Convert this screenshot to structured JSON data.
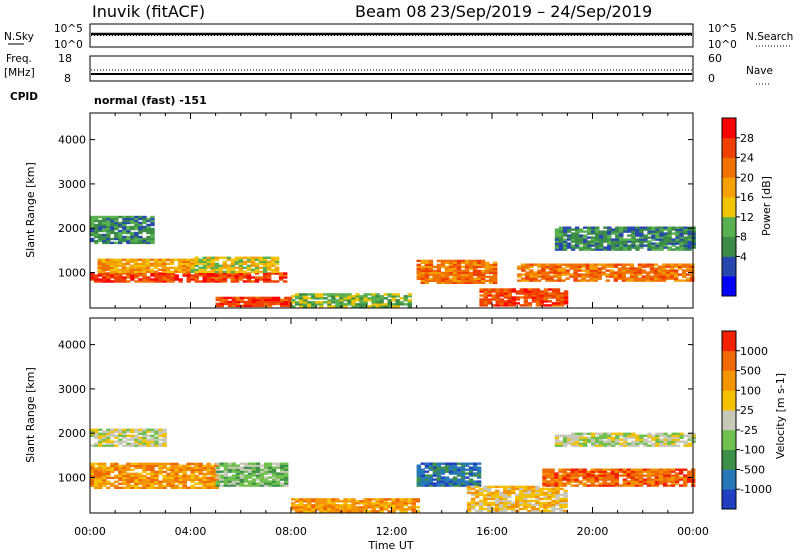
{
  "header": {
    "station": "Inuvik (fitACF)",
    "beam": "Beam 08",
    "date_range": "23/Sep/2019 – 24/Sep/2019"
  },
  "status_panel": {
    "nsky_label": "N.Sky",
    "nsky_ticks": [
      "10^5",
      "10^0"
    ],
    "nsearch_label": "N.Search",
    "nsearch_ticks": [
      "10^5",
      "10^0"
    ]
  },
  "freq_panel": {
    "freq_label": "Freq.",
    "freq_unit": "[MHz]",
    "freq_ticks": [
      "18",
      "8"
    ],
    "nave_label": "Nave",
    "nave_ticks": [
      "60",
      "0"
    ],
    "cpid_label": "CPID",
    "cpid_text": "normal (fast) -151"
  },
  "x_axis": {
    "label": "Time UT",
    "ticks": [
      "00:00",
      "04:00",
      "08:00",
      "12:00",
      "16:00",
      "20:00",
      "00:00"
    ]
  },
  "power_colorbar": {
    "label": "Power [dB]",
    "ticks": [
      "28",
      "24",
      "20",
      "16",
      "12",
      "8",
      "4"
    ],
    "colors": [
      "#0000ff",
      "#2848b0",
      "#3c8c48",
      "#58b050",
      "#f0c400",
      "#f4a000",
      "#f07000",
      "#f04000",
      "#ff0000"
    ]
  },
  "velocity_colorbar": {
    "label": "Velocity [m s-1]",
    "ticks": [
      "1000",
      "500",
      "100",
      "25",
      "-25",
      "-100",
      "-500",
      "-1000"
    ],
    "colors": [
      "#2040c0",
      "#2878b8",
      "#3c9048",
      "#70c050",
      "#c8c8b8",
      "#f4c000",
      "#f49400",
      "#f06800",
      "#f02000"
    ]
  },
  "chart_data": [
    {
      "type": "heatmap",
      "name": "power",
      "ylabel": "Slant Range [km]",
      "yticks": [
        "1000",
        "2000",
        "3000",
        "4000"
      ],
      "ylim": [
        200,
        4600
      ],
      "xlim": [
        0,
        24
      ],
      "echo_regions": [
        {
          "t0": 0.0,
          "t1": 7.8,
          "r0": 780,
          "r1": 1000,
          "level": 7
        },
        {
          "t0": 0.3,
          "t1": 4.0,
          "r0": 1000,
          "r1": 1300,
          "level": 5
        },
        {
          "t0": 4.0,
          "t1": 7.5,
          "r0": 1000,
          "r1": 1320,
          "level": 4
        },
        {
          "t0": 0.0,
          "t1": 2.5,
          "r0": 1650,
          "r1": 2250,
          "level": 2
        },
        {
          "t0": 5.0,
          "t1": 8.0,
          "r0": 230,
          "r1": 420,
          "level": 7
        },
        {
          "t0": 8.0,
          "t1": 12.8,
          "r0": 220,
          "r1": 500,
          "level": 3
        },
        {
          "t0": 13.0,
          "t1": 16.2,
          "r0": 750,
          "r1": 1250,
          "level": 6
        },
        {
          "t0": 15.5,
          "t1": 19.0,
          "r0": 240,
          "r1": 620,
          "level": 7
        },
        {
          "t0": 17.0,
          "t1": 24.0,
          "r0": 800,
          "r1": 1200,
          "level": 6
        },
        {
          "t0": 18.5,
          "t1": 24.0,
          "r0": 1500,
          "r1": 2000,
          "level": 2
        }
      ]
    },
    {
      "type": "heatmap",
      "name": "velocity",
      "ylabel": "Slant Range [km]",
      "yticks": [
        "1000",
        "2000",
        "3000",
        "4000"
      ],
      "ylim": [
        200,
        4600
      ],
      "xlim": [
        0,
        24
      ],
      "echo_regions": [
        {
          "t0": 0.0,
          "t1": 5.0,
          "r0": 750,
          "r1": 1300,
          "level": 6
        },
        {
          "t0": 5.0,
          "t1": 7.8,
          "r0": 800,
          "r1": 1300,
          "level": 3
        },
        {
          "t0": 0.0,
          "t1": 3.0,
          "r0": 1700,
          "r1": 2100,
          "level": 4
        },
        {
          "t0": 8.0,
          "t1": 13.0,
          "r0": 220,
          "r1": 500,
          "level": 6
        },
        {
          "t0": 13.0,
          "t1": 15.5,
          "r0": 800,
          "r1": 1300,
          "level": 1
        },
        {
          "t0": 15.0,
          "t1": 19.0,
          "r0": 230,
          "r1": 800,
          "level": 5
        },
        {
          "t0": 18.0,
          "t1": 24.0,
          "r0": 800,
          "r1": 1200,
          "level": 7
        },
        {
          "t0": 18.5,
          "t1": 24.0,
          "r0": 1700,
          "r1": 2000,
          "level": 4
        }
      ]
    }
  ]
}
